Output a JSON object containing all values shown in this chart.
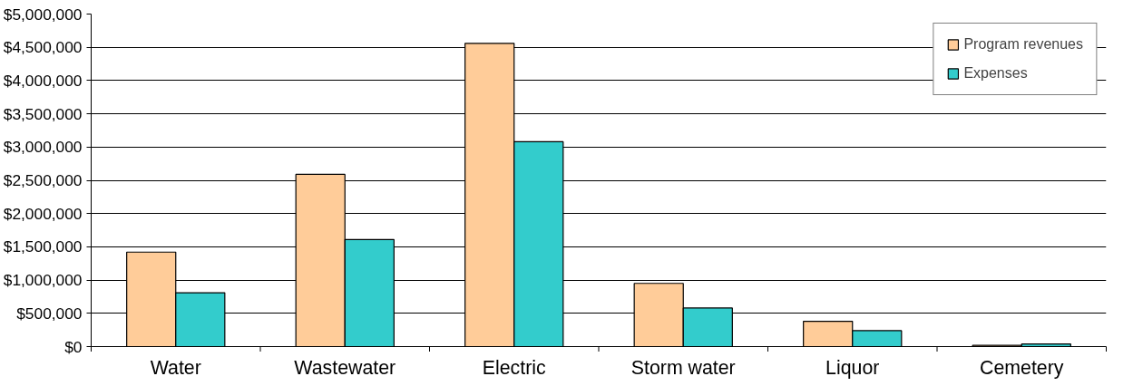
{
  "chart_data": {
    "type": "bar",
    "categories": [
      "Water",
      "Wastewater",
      "Electric",
      "Storm water",
      "Liquor",
      "Cemetery"
    ],
    "series": [
      {
        "name": "Program revenues",
        "color": "#ffcc99",
        "values": [
          1420000,
          2590000,
          4560000,
          950000,
          380000,
          20000
        ]
      },
      {
        "name": "Expenses",
        "color": "#33cccc",
        "values": [
          810000,
          1610000,
          3080000,
          580000,
          240000,
          40000
        ]
      }
    ],
    "ylim": [
      0,
      5000000
    ],
    "yticks": [
      {
        "value": 0,
        "label": "$0"
      },
      {
        "value": 500000,
        "label": "$500,000"
      },
      {
        "value": 1000000,
        "label": "$1,000,000"
      },
      {
        "value": 1500000,
        "label": "$1,500,000"
      },
      {
        "value": 2000000,
        "label": "$2,000,000"
      },
      {
        "value": 2500000,
        "label": "$2,500,000"
      },
      {
        "value": 3000000,
        "label": "$3,000,000"
      },
      {
        "value": 3500000,
        "label": "$3,500,000"
      },
      {
        "value": 4000000,
        "label": "$4,000,000"
      },
      {
        "value": 4500000,
        "label": "$4,500,000"
      },
      {
        "value": 5000000,
        "label": "$5,000,000"
      }
    ],
    "grid": "y",
    "legend": "top right"
  }
}
